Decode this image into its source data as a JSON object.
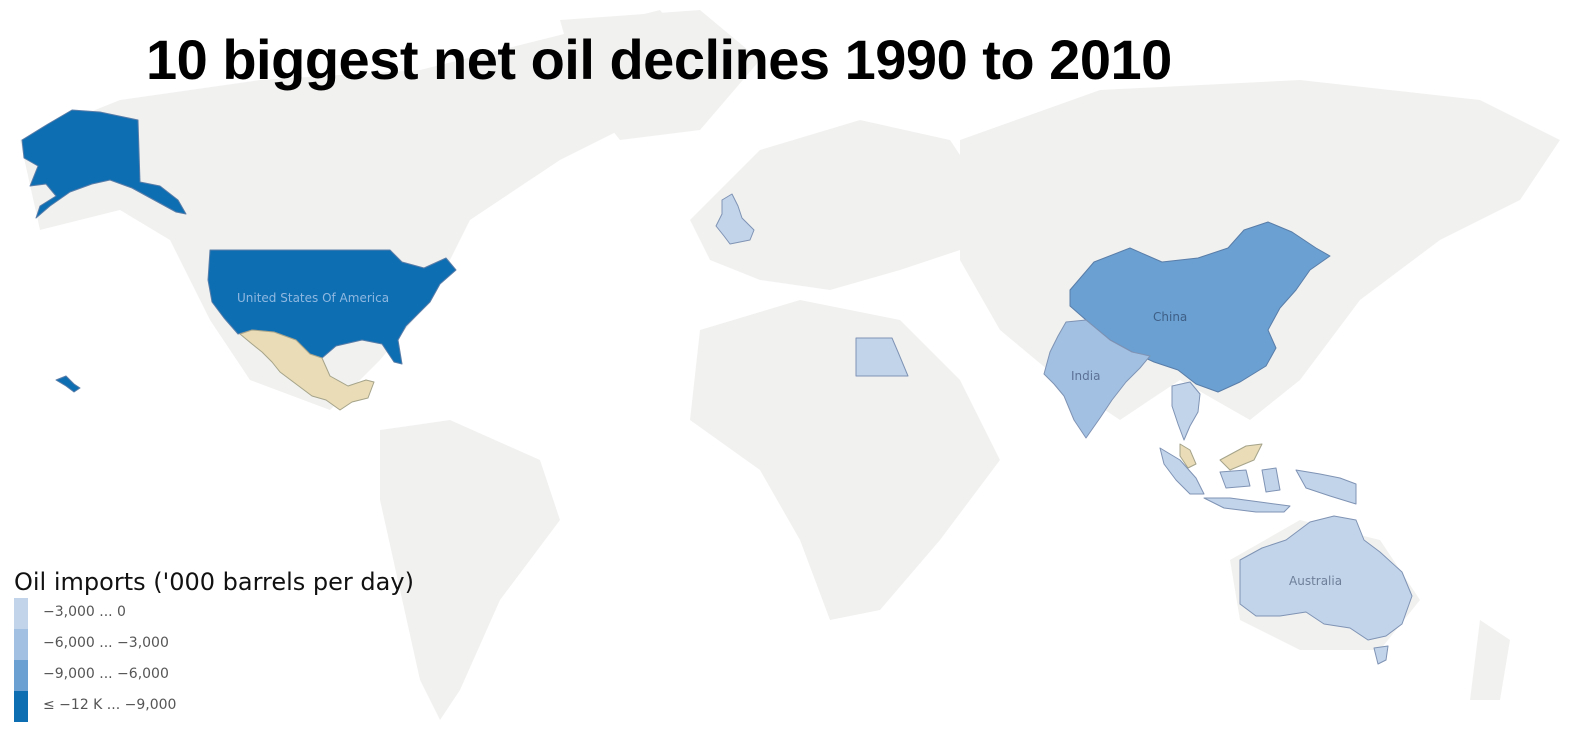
{
  "map": {
    "title": "10 biggest net oil declines 1990 to 2010",
    "colors": {
      "background": "#ffffff",
      "land": "#f1f2f0",
      "no_data_highlight": "#e9dcb6",
      "class_1": "#c2d4ea",
      "class_2": "#a2c0e2",
      "class_3": "#6aa0d2",
      "class_4": "#0d6eb2"
    },
    "highlighted_countries": [
      {
        "name": "United States Of America",
        "label": "United States Of America",
        "class": 4
      },
      {
        "name": "China",
        "label": "China",
        "class": 3
      },
      {
        "name": "India",
        "label": "India",
        "class": 1
      },
      {
        "name": "Australia",
        "label": "Australia",
        "class": 1
      },
      {
        "name": "United Kingdom",
        "label": "",
        "class": 1
      },
      {
        "name": "Egypt",
        "label": "",
        "class": 1
      },
      {
        "name": "Thailand",
        "label": "",
        "class": 1
      },
      {
        "name": "Indonesia",
        "label": "",
        "class": 1
      },
      {
        "name": "Mexico",
        "label": "",
        "class": 0
      },
      {
        "name": "Malaysia",
        "label": "",
        "class": 0
      }
    ],
    "legend": {
      "title": "Oil imports ('000 barrels per day)",
      "items": [
        {
          "label": "−3,000 ... 0",
          "color": "#c2d4ea"
        },
        {
          "label": "−6,000 ... −3,000",
          "color": "#a2c0e2"
        },
        {
          "label": "−9,000 ... −6,000",
          "color": "#6aa0d2"
        },
        {
          "label": "≤ −12 K ... −9,000",
          "color": "#0d6eb2"
        }
      ]
    }
  }
}
